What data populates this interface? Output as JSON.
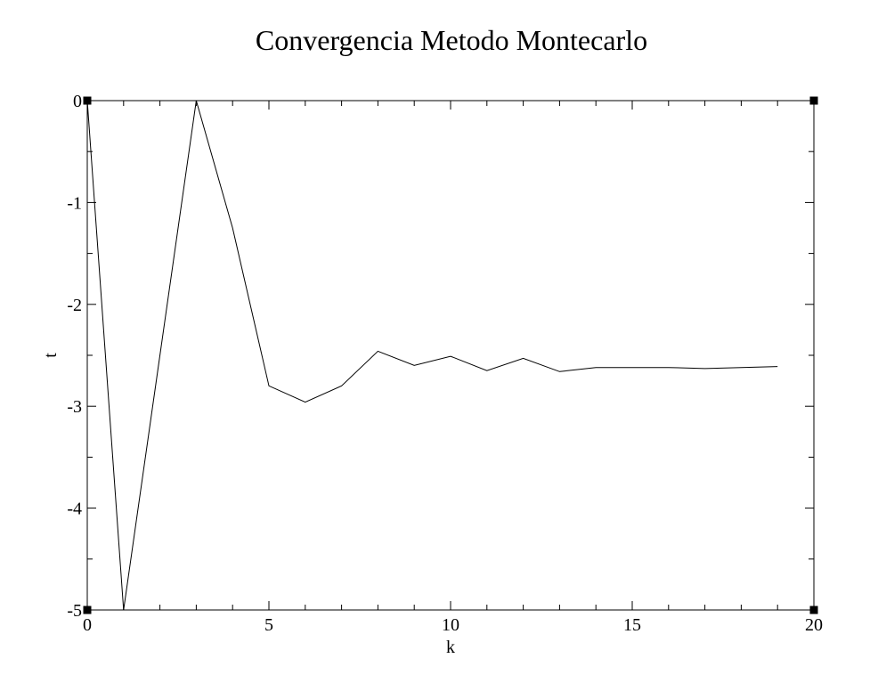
{
  "chart_data": {
    "type": "line",
    "title": "Convergencia Metodo Montecarlo",
    "xlabel": "k",
    "ylabel": "t",
    "xlim": [
      0,
      20
    ],
    "ylim": [
      -5,
      0
    ],
    "x_ticks": [
      0,
      5,
      10,
      15,
      20
    ],
    "x_tick_labels": [
      "0",
      "5",
      "10",
      "15",
      "20"
    ],
    "x_minor_step": 1,
    "y_ticks": [
      0,
      -1,
      -2,
      -3,
      -4,
      -5
    ],
    "y_tick_labels": [
      "0",
      "-1",
      "-2",
      "-3",
      "-4",
      "-5"
    ],
    "y_minor_step": 0.5,
    "grid": false,
    "legend": "none",
    "line_color": "#000000",
    "series": [
      {
        "x": [
          0,
          1,
          2,
          3,
          4,
          5,
          6,
          7,
          8,
          9,
          10,
          11,
          12,
          13,
          14,
          15,
          16,
          17,
          18,
          19
        ],
        "values": [
          0,
          -5,
          -2.5,
          0,
          -1.25,
          -2.8,
          -2.96,
          -2.8,
          -2.46,
          -2.6,
          -2.51,
          -2.65,
          -2.53,
          -2.66,
          -2.62,
          -2.62,
          -2.62,
          -2.63,
          -2.62,
          -2.61
        ]
      }
    ]
  }
}
